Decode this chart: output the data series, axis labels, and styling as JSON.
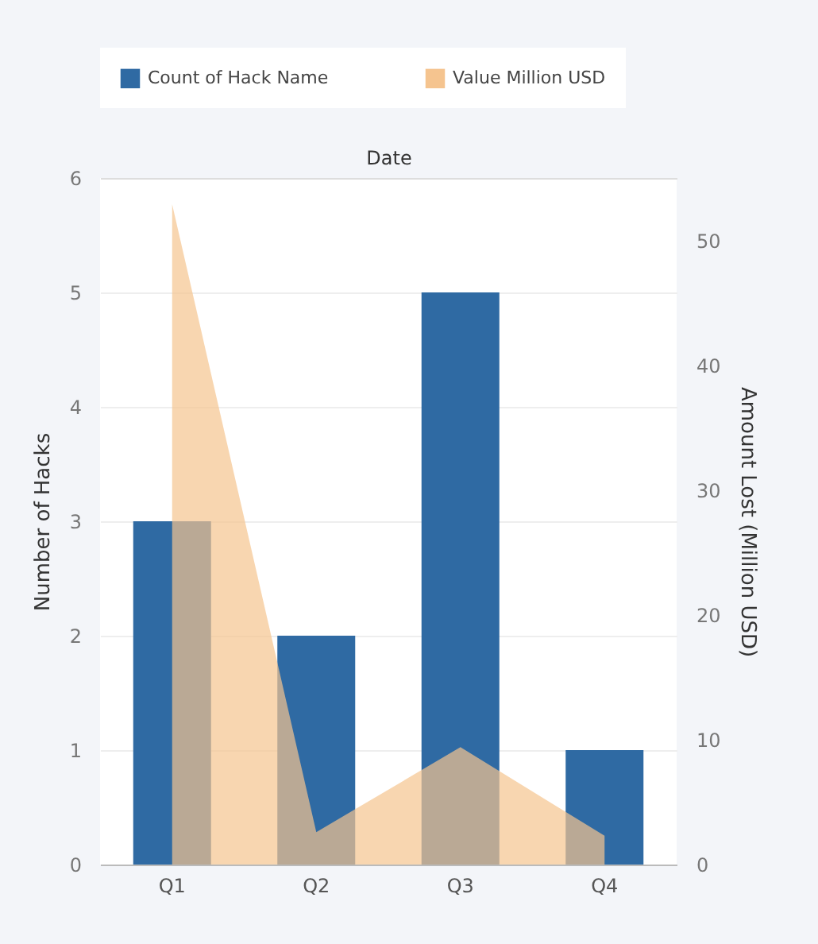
{
  "chart_data": {
    "type": "bar",
    "xlabel": "Date",
    "ylabel": "Number of Hacks",
    "y2label": "Amount Lost (Million USD)",
    "categories": [
      "Q1",
      "Q2",
      "Q3",
      "Q4"
    ],
    "series": [
      {
        "name": "Count of Hack Name",
        "color": "#2f6aa3",
        "values": [
          3,
          2,
          5,
          1
        ]
      },
      {
        "name": "Value Million USD",
        "type": "area",
        "axis": "y2",
        "color": "#f5c48f",
        "values": [
          52.9,
          2.6,
          9.4,
          2.3
        ]
      }
    ],
    "ylim": [
      0,
      6
    ],
    "yticks": [
      0,
      1,
      2,
      3,
      4,
      5,
      6
    ],
    "y2lim": [
      0,
      55
    ],
    "y2ticks": [
      0,
      10,
      20,
      30,
      40,
      50
    ],
    "grid": "y",
    "legend": "top"
  }
}
